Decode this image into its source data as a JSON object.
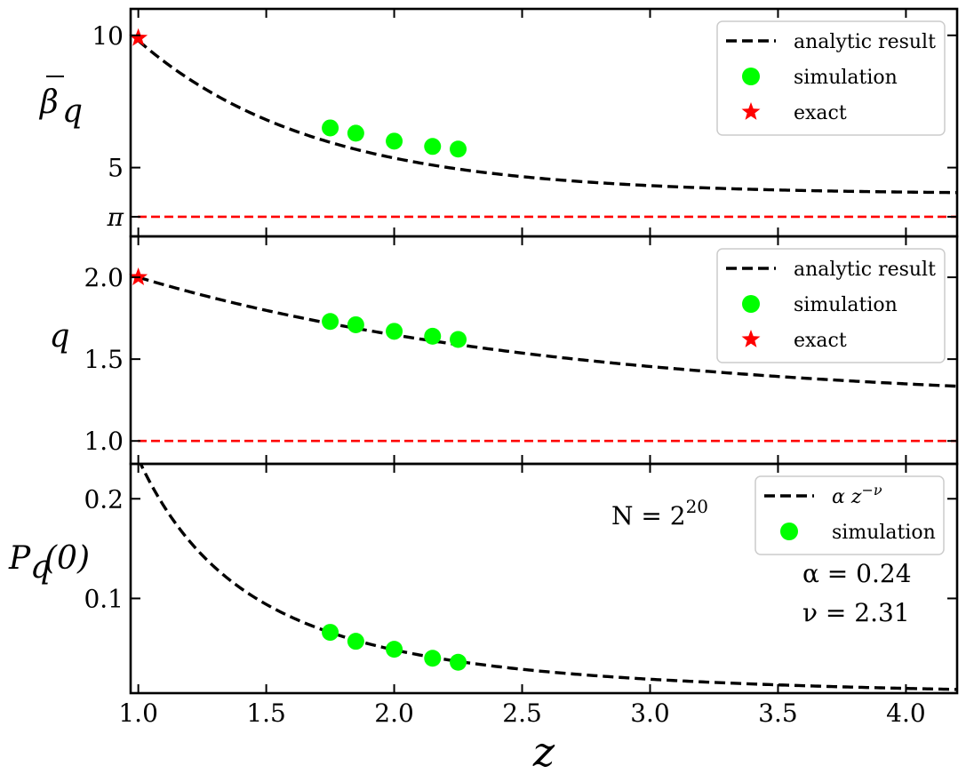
{
  "chart_data": [
    {
      "type": "line",
      "panel": "top",
      "ylabel": "β̄_q",
      "xlim": [
        0.97,
        4.2
      ],
      "ylim": [
        2.4,
        11.0
      ],
      "yticks": [
        {
          "value": 5,
          "label": "5"
        },
        {
          "value": 10,
          "label": "10"
        },
        {
          "value": 3.14159,
          "label": "π"
        }
      ],
      "reference_line": {
        "value": 3.14159,
        "color": "#ff0000",
        "style": "dashed"
      },
      "analytic": {
        "x0": 1.0,
        "y0": 9.8,
        "b": 4.0,
        "k": 1.45
      },
      "series": [
        {
          "name": "analytic result",
          "style": "dashed",
          "color": "#000000"
        },
        {
          "name": "simulation",
          "marker": "circle",
          "color": "#00ff00",
          "x": [
            1.75,
            1.85,
            2.0,
            2.15,
            2.25
          ],
          "y": [
            6.5,
            6.3,
            6.0,
            5.8,
            5.7
          ]
        },
        {
          "name": "exact",
          "marker": "star",
          "color": "#ff0000",
          "x": [
            1.0
          ],
          "y": [
            9.9
          ]
        }
      ],
      "legend_position": "top-right"
    },
    {
      "type": "line",
      "panel": "middle",
      "ylabel": "q",
      "xlim": [
        0.97,
        4.2
      ],
      "ylim": [
        0.86,
        2.25
      ],
      "yticks": [
        {
          "value": 1.0,
          "label": "1.0"
        },
        {
          "value": 1.5,
          "label": "1.5"
        },
        {
          "value": 2.0,
          "label": "2.0"
        }
      ],
      "reference_line": {
        "value": 1.0,
        "color": "#ff0000",
        "style": "dashed"
      },
      "analytic": {
        "x0": 1.0,
        "y0": 2.0,
        "b": 1.22,
        "k": 0.6
      },
      "series": [
        {
          "name": "analytic result",
          "style": "dashed",
          "color": "#000000"
        },
        {
          "name": "simulation",
          "marker": "circle",
          "color": "#00ff00",
          "x": [
            1.75,
            1.85,
            2.0,
            2.15,
            2.25
          ],
          "y": [
            1.73,
            1.71,
            1.67,
            1.64,
            1.62
          ]
        },
        {
          "name": "exact",
          "marker": "star",
          "color": "#ff0000",
          "x": [
            1.0
          ],
          "y": [
            2.0
          ]
        }
      ],
      "legend_position": "top-right"
    },
    {
      "type": "line",
      "panel": "bottom",
      "ylabel": "P_q(0)",
      "xlabel": "z",
      "xlim": [
        0.97,
        4.2
      ],
      "ylim": [
        0.005,
        0.235
      ],
      "yticks": [
        {
          "value": 0.1,
          "label": "0.1"
        },
        {
          "value": 0.2,
          "label": "0.2"
        }
      ],
      "xticks": [
        {
          "value": 1.0,
          "label": "1.0"
        },
        {
          "value": 1.5,
          "label": "1.5"
        },
        {
          "value": 2.0,
          "label": "2.0"
        },
        {
          "value": 2.5,
          "label": "2.5"
        },
        {
          "value": 3.0,
          "label": "3.0"
        },
        {
          "value": 3.5,
          "label": "3.5"
        },
        {
          "value": 4.0,
          "label": "4.0"
        }
      ],
      "fit": {
        "alpha": 0.24,
        "nu": 2.31
      },
      "annotations": {
        "N": "N = 2",
        "N_exp": "20",
        "alpha": "α = 0.24",
        "nu": "ν = 2.31"
      },
      "series": [
        {
          "name": "α z",
          "name_sup": "−ν",
          "style": "dashed",
          "color": "#000000"
        },
        {
          "name": "simulation",
          "marker": "circle",
          "color": "#00ff00",
          "x": [
            1.75,
            1.85,
            2.0,
            2.15,
            2.25
          ],
          "y": [
            0.066,
            0.057,
            0.049,
            0.04,
            0.036
          ]
        }
      ],
      "legend_position": "top-right"
    }
  ]
}
